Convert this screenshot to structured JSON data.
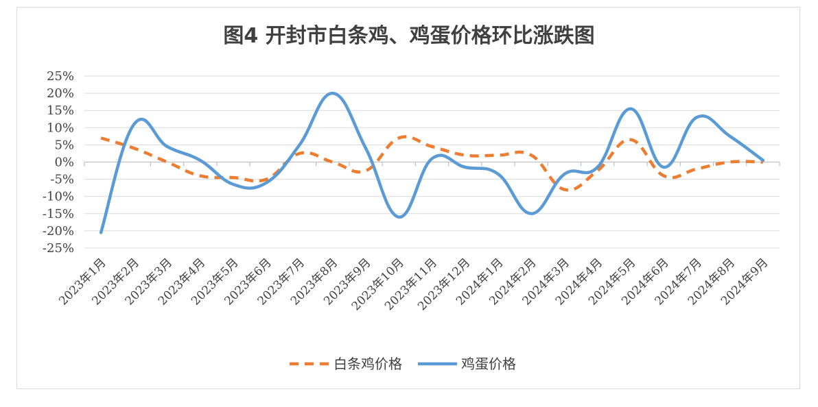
{
  "chart_data": {
    "type": "line",
    "title": "图4  开封市白条鸡、鸡蛋价格环比涨跌图",
    "xlabel": "",
    "ylabel": "",
    "ylim": [
      -25,
      25
    ],
    "y_ticks": [
      "25%",
      "20%",
      "15%",
      "10%",
      "5%",
      "0%",
      "-5%",
      "-10%",
      "-15%",
      "-20%",
      "-25%"
    ],
    "y_tick_values": [
      25,
      20,
      15,
      10,
      5,
      0,
      -5,
      -10,
      -15,
      -20,
      -25
    ],
    "grid": true,
    "legend_position": "bottom",
    "categories": [
      "2023年1月",
      "2023年2月",
      "2023年3月",
      "2023年4月",
      "2023年5月",
      "2023年6月",
      "2023年7月",
      "2023年8月",
      "2023年9月",
      "2023年10月",
      "2023年11月",
      "2023年12月",
      "2024年1月",
      "2024年2月",
      "2024年3月",
      "2024年4月",
      "2024年5月",
      "2024年6月",
      "2024年7月",
      "2024年8月",
      "2024年9月"
    ],
    "series": [
      {
        "name": "白条鸡价格",
        "color": "#ED7D31",
        "dash": true,
        "values": [
          7.0,
          4.0,
          0.0,
          -4.0,
          -4.5,
          -5.0,
          2.5,
          0.0,
          -2.5,
          7.0,
          4.5,
          2.0,
          2.0,
          2.0,
          -8.0,
          -2.5,
          6.5,
          -4.0,
          -2.0,
          0.0,
          0.0
        ]
      },
      {
        "name": "鸡蛋价格",
        "color": "#5B9BD5",
        "dash": false,
        "values": [
          -20.5,
          11.0,
          4.5,
          0.5,
          -6.5,
          -6.0,
          5.0,
          20.0,
          4.0,
          -16.0,
          1.0,
          -1.5,
          -3.5,
          -15.0,
          -3.5,
          -1.5,
          15.5,
          -1.5,
          13.0,
          7.5,
          0.5
        ]
      }
    ]
  }
}
